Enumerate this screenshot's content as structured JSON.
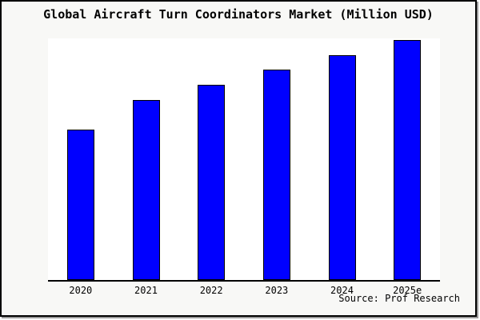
{
  "title": "Global Aircraft Turn Coordinators Market (Million USD)",
  "source_note": "Source: Prof Research",
  "colors": {
    "bar_fill": "#0000ff",
    "bar_edge": "#000000",
    "plot_background": "#ffffff",
    "page_background": "#f8f8f6",
    "frame_border": "#000000",
    "frame_shadow": "#999999"
  },
  "chart_data": {
    "type": "bar",
    "title": "Global Aircraft Turn Coordinators Market (Million USD)",
    "categories": [
      "2020",
      "2021",
      "2022",
      "2023",
      "2024",
      "2025e"
    ],
    "values": [
      62.3,
      74.5,
      80.8,
      87.1,
      93.0,
      99.3
    ],
    "value_note": "relative units; y-axis unlabeled in figure, heights estimated from bars (tallest = 99.3 of ylim 100)",
    "xlabel": "",
    "ylabel": "",
    "ylim": [
      0,
      100
    ],
    "grid": false,
    "legend": false,
    "annotations": [
      "Source: Prof Research"
    ]
  }
}
